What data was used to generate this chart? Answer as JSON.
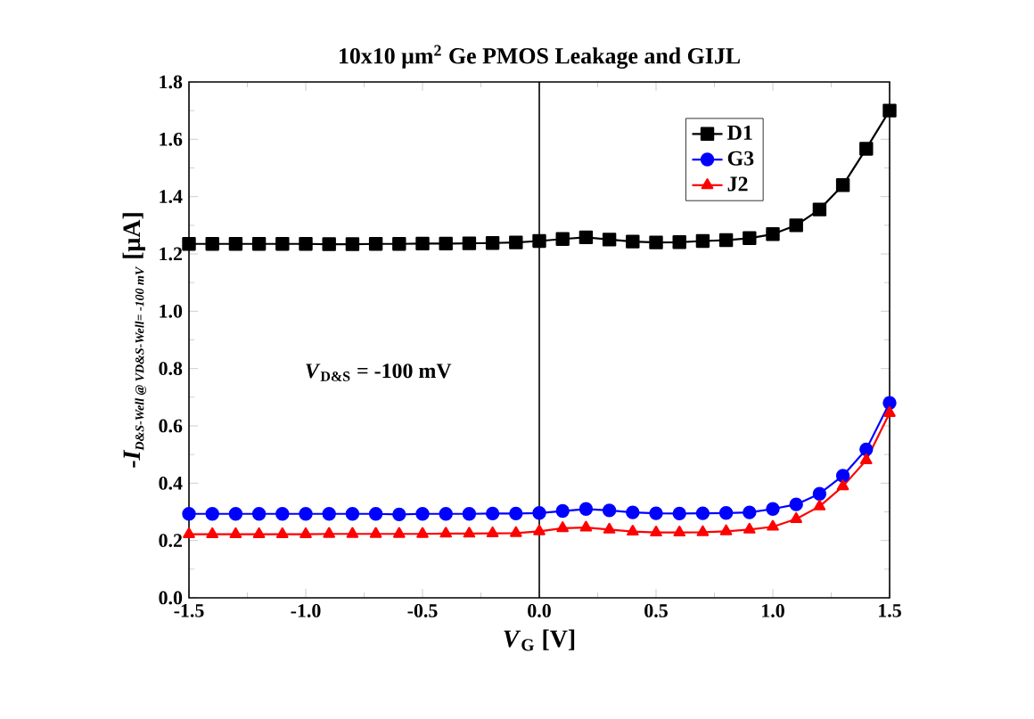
{
  "chart_data": {
    "type": "line",
    "title": "10x10 μm$^{2}$ Ge PMOS Leakage and GIJL",
    "xlabel": "*V*$_{G}$ [V]",
    "ylabel": "\\mbox{\\bfseries -}\\mbox{\\bfseries\\itshape I}_{\\mbox{\\scriptsize\\bfseries\\itshape D\\&S-Well @ VD\\&S-Well= -100 mV}}\\ \\mbox{\\bfseries [μA]}",
    "annotations": [
      "*V*$_{D&S}$ = -100 mV"
    ],
    "x": [
      -1.5,
      -1.4,
      -1.3,
      -1.2,
      -1.1,
      -1.0,
      -0.9,
      -0.8,
      -0.7,
      -0.6,
      -0.5,
      -0.4,
      -0.3,
      -0.2,
      -0.1,
      0.0,
      0.1,
      0.2,
      0.3,
      0.4,
      0.5,
      0.6,
      0.7,
      0.8,
      0.9,
      1.0,
      1.1,
      1.2,
      1.3,
      1.4,
      1.5
    ],
    "series": [
      {
        "name": "D1",
        "color": "#000000",
        "marker": "square",
        "values": [
          1.235,
          1.235,
          1.235,
          1.235,
          1.235,
          1.235,
          1.234,
          1.234,
          1.235,
          1.235,
          1.236,
          1.236,
          1.237,
          1.238,
          1.24,
          1.245,
          1.252,
          1.258,
          1.25,
          1.243,
          1.24,
          1.241,
          1.245,
          1.248,
          1.255,
          1.269,
          1.3,
          1.355,
          1.44,
          1.567,
          1.7
        ]
      },
      {
        "name": "G3",
        "color": "#0000ff",
        "marker": "circle",
        "values": [
          0.293,
          0.293,
          0.293,
          0.293,
          0.293,
          0.293,
          0.293,
          0.293,
          0.293,
          0.291,
          0.293,
          0.293,
          0.293,
          0.294,
          0.294,
          0.296,
          0.303,
          0.31,
          0.305,
          0.298,
          0.295,
          0.294,
          0.295,
          0.296,
          0.298,
          0.31,
          0.326,
          0.363,
          0.426,
          0.518,
          0.68
        ]
      },
      {
        "name": "J2",
        "color": "#ff0000",
        "marker": "triangle",
        "values": [
          0.222,
          0.222,
          0.222,
          0.222,
          0.222,
          0.222,
          0.223,
          0.223,
          0.223,
          0.223,
          0.223,
          0.224,
          0.224,
          0.225,
          0.226,
          0.232,
          0.243,
          0.245,
          0.238,
          0.231,
          0.228,
          0.228,
          0.229,
          0.232,
          0.238,
          0.248,
          0.275,
          0.319,
          0.389,
          0.48,
          0.645
        ]
      }
    ],
    "xlim": [
      -1.5,
      1.5
    ],
    "ylim": [
      0.0,
      1.8
    ],
    "xticks": [
      {
        "value": -1.5,
        "label": "-1.5"
      },
      {
        "value": -1.0,
        "label": "-1.0"
      },
      {
        "value": -0.5,
        "label": "-0.5"
      },
      {
        "value": 0.0,
        "label": "0.0"
      },
      {
        "value": 0.5,
        "label": "0.5"
      },
      {
        "value": 1.0,
        "label": "1.0"
      },
      {
        "value": 1.5,
        "label": "1.5"
      }
    ],
    "yticks": [
      {
        "value": 0.0,
        "label": "0.0"
      },
      {
        "value": 0.2,
        "label": "0.2"
      },
      {
        "value": 0.4,
        "label": "0.4"
      },
      {
        "value": 0.6,
        "label": "0.6"
      },
      {
        "value": 0.8,
        "label": "0.8"
      },
      {
        "value": 1.0,
        "label": "1.0"
      },
      {
        "value": 1.2,
        "label": "1.2"
      },
      {
        "value": 1.4,
        "label": "1.4"
      },
      {
        "value": 1.6,
        "label": "1.6"
      },
      {
        "value": 1.8,
        "label": "1.8"
      }
    ],
    "ref_lines": [
      {
        "axis": "x",
        "value": 0.0,
        "color": "#000000"
      }
    ],
    "legend": "top right",
    "grid": false,
    "line_style": "solid"
  }
}
